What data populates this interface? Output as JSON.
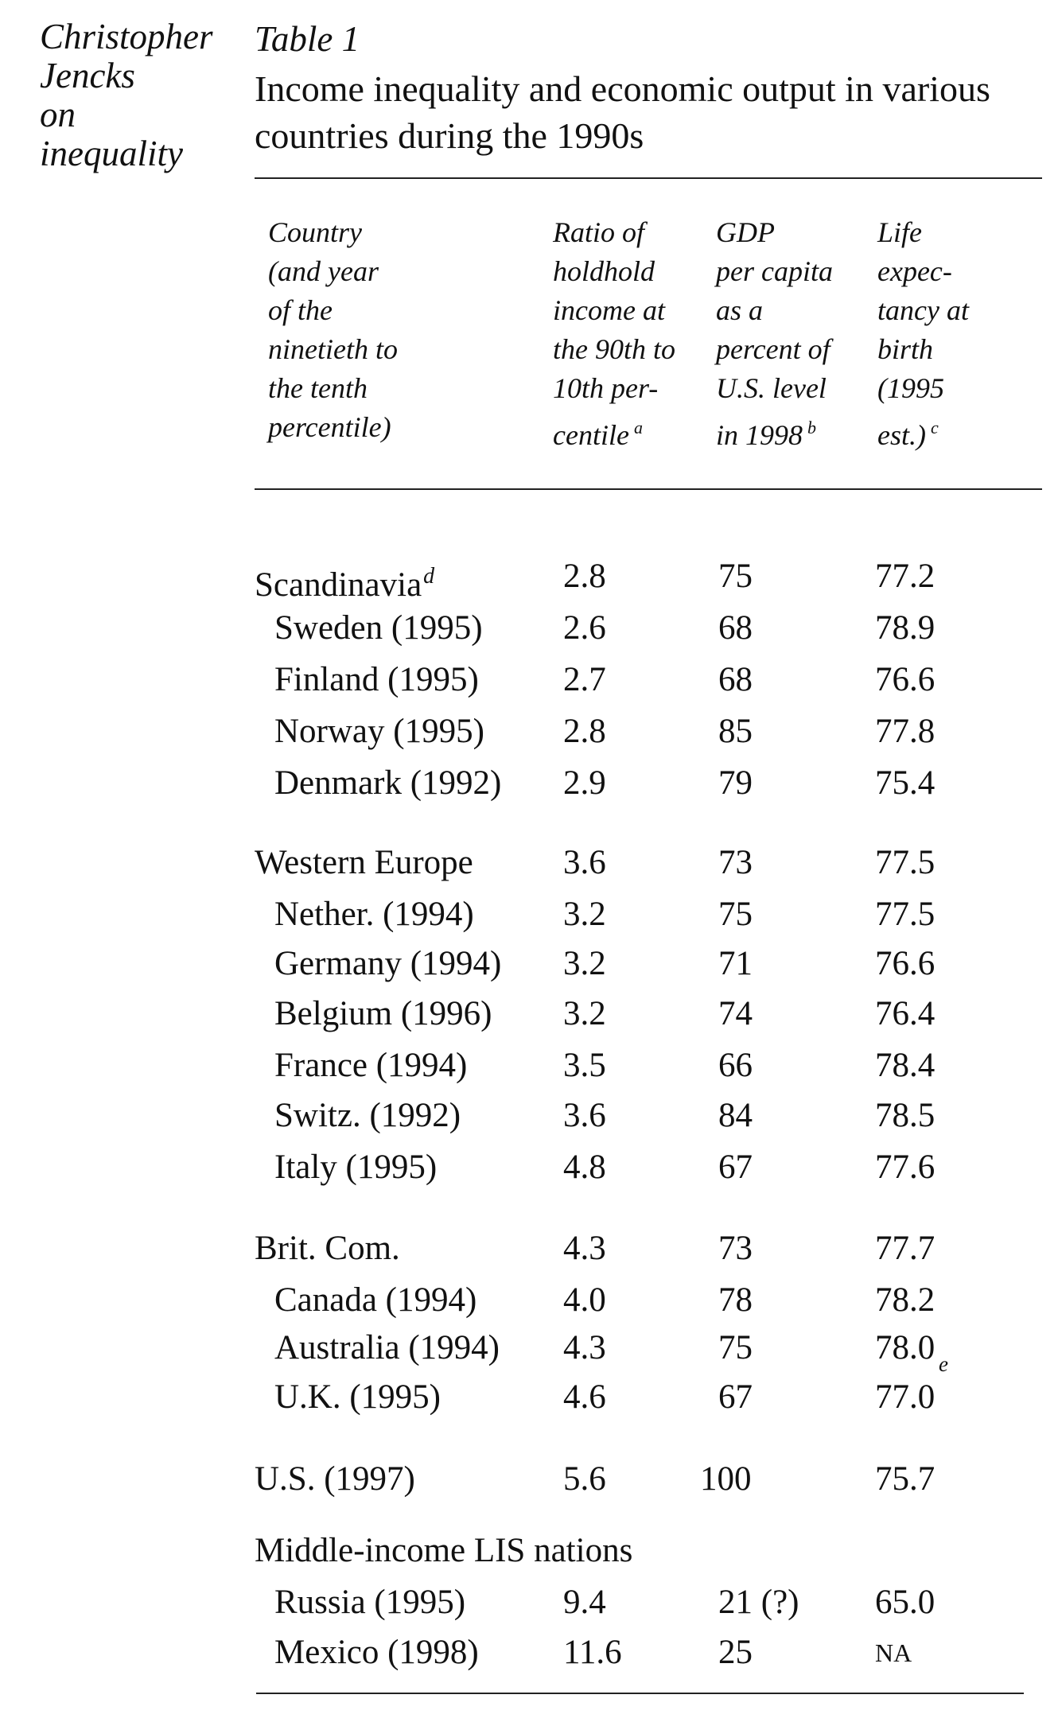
{
  "running_head": [
    "Christopher",
    "Jencks",
    "on",
    "inequality"
  ],
  "table_label": "Table 1",
  "table_title": "Income inequality and economic output in various countries during the 1990s",
  "column_headers": {
    "country": [
      "Country",
      "(and year",
      "of the",
      "ninetieth to",
      "the tenth",
      "percentile)"
    ],
    "ratio": [
      "Ratio of",
      "holdhold",
      "income at",
      "the 90th to",
      "10th per-",
      "centile"
    ],
    "ratio_note": "a",
    "gdp": [
      "GDP",
      "per capita",
      "as a",
      "percent of",
      "U.S. level",
      "in 1998"
    ],
    "gdp_note": "b",
    "life": [
      "Life",
      "expec-",
      "tancy at",
      "birth",
      "(1995",
      "est.)"
    ],
    "life_note": "c"
  },
  "rows": [
    {
      "country": "Scandinavia",
      "note": "d",
      "ratio": "2.8",
      "gdp": "75",
      "life": "77.2",
      "sub": false
    },
    {
      "country": "Sweden (1995)",
      "ratio": "2.6",
      "gdp": "68",
      "life": "78.9",
      "sub": true
    },
    {
      "country": "Finland (1995)",
      "ratio": "2.7",
      "gdp": "68",
      "life": "76.6",
      "sub": true
    },
    {
      "country": "Norway (1995)",
      "ratio": "2.8",
      "gdp": "85",
      "life": "77.8",
      "sub": true
    },
    {
      "country": "Denmark (1992)",
      "ratio": "2.9",
      "gdp": "79",
      "life": "75.4",
      "sub": true
    },
    {
      "country": "Western Europe",
      "ratio": "3.6",
      "gdp": "73",
      "life": "77.5",
      "sub": false
    },
    {
      "country": "Nether. (1994)",
      "ratio": "3.2",
      "gdp": "75",
      "life": "77.5",
      "sub": true
    },
    {
      "country": "Germany (1994)",
      "ratio": "3.2",
      "gdp": "71",
      "life": "76.6",
      "sub": true
    },
    {
      "country": "Belgium (1996)",
      "ratio": "3.2",
      "gdp": "74",
      "life": "76.4",
      "sub": true
    },
    {
      "country": "France (1994)",
      "ratio": "3.5",
      "gdp": "66",
      "life": "78.4",
      "sub": true
    },
    {
      "country": "Switz. (1992)",
      "ratio": "3.6",
      "gdp": "84",
      "life": "78.5",
      "sub": true
    },
    {
      "country": "Italy (1995)",
      "ratio": "4.8",
      "gdp": "67",
      "life": "77.6",
      "sub": true
    },
    {
      "country": "Brit. Com.",
      "ratio": "4.3",
      "gdp": "73",
      "life": "77.7",
      "sub": false
    },
    {
      "country": "Canada (1994)",
      "ratio": "4.0",
      "gdp": "78",
      "life": "78.2",
      "sub": true
    },
    {
      "country": "Australia (1994)",
      "ratio": "4.3",
      "gdp": "75",
      "life": "78.0",
      "sub": true
    },
    {
      "country": "U.K. (1995)",
      "ratio": "4.6",
      "gdp": "67",
      "life": "77.0",
      "sub": true
    },
    {
      "country": "U.S. (1997)",
      "ratio": "5.6",
      "gdp": "100",
      "life": "75.7",
      "sub": false
    },
    {
      "country": "Russia (1995)",
      "ratio": "9.4",
      "gdp": "21 (?)",
      "life": "65.0",
      "sub": true
    },
    {
      "country": "Mexico (1998)",
      "ratio": "11.6",
      "gdp": "25",
      "life": "NA",
      "sub": true
    }
  ],
  "uk_life_note": "e",
  "middle_income_heading": "Middle-income LIS nations"
}
